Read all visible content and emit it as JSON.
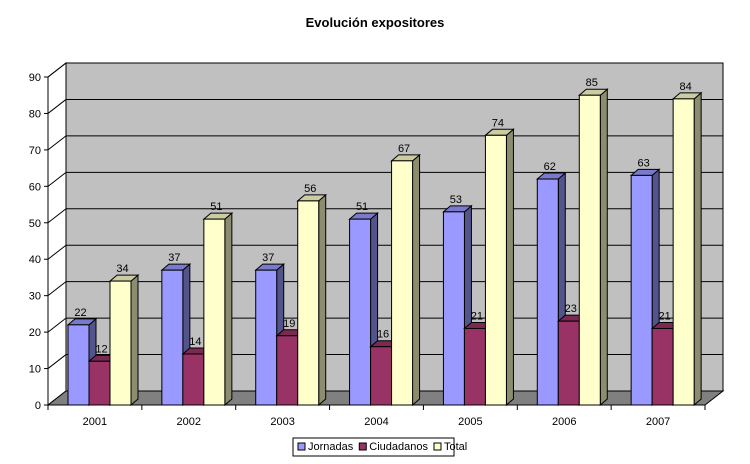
{
  "chart_data": {
    "type": "bar",
    "title": "Evolución expositores",
    "categories": [
      "2001",
      "2002",
      "2003",
      "2004",
      "2005",
      "2006",
      "2007"
    ],
    "series": [
      {
        "name": "Jornadas",
        "values": [
          22,
          37,
          37,
          51,
          53,
          62,
          63
        ],
        "color": "#9999FF"
      },
      {
        "name": "Ciudadanos",
        "values": [
          12,
          14,
          19,
          16,
          21,
          23,
          21
        ],
        "color": "#993366"
      },
      {
        "name": "Total",
        "values": [
          34,
          51,
          56,
          67,
          74,
          85,
          84
        ],
        "color": "#FFFFCC"
      }
    ],
    "ylim": [
      0,
      90
    ],
    "yticks": [
      0,
      10,
      20,
      30,
      40,
      50,
      60,
      70,
      80,
      90
    ],
    "grid": true,
    "three_d": true,
    "legend_position": "bottom",
    "wall_color": "#C0C0C0"
  }
}
